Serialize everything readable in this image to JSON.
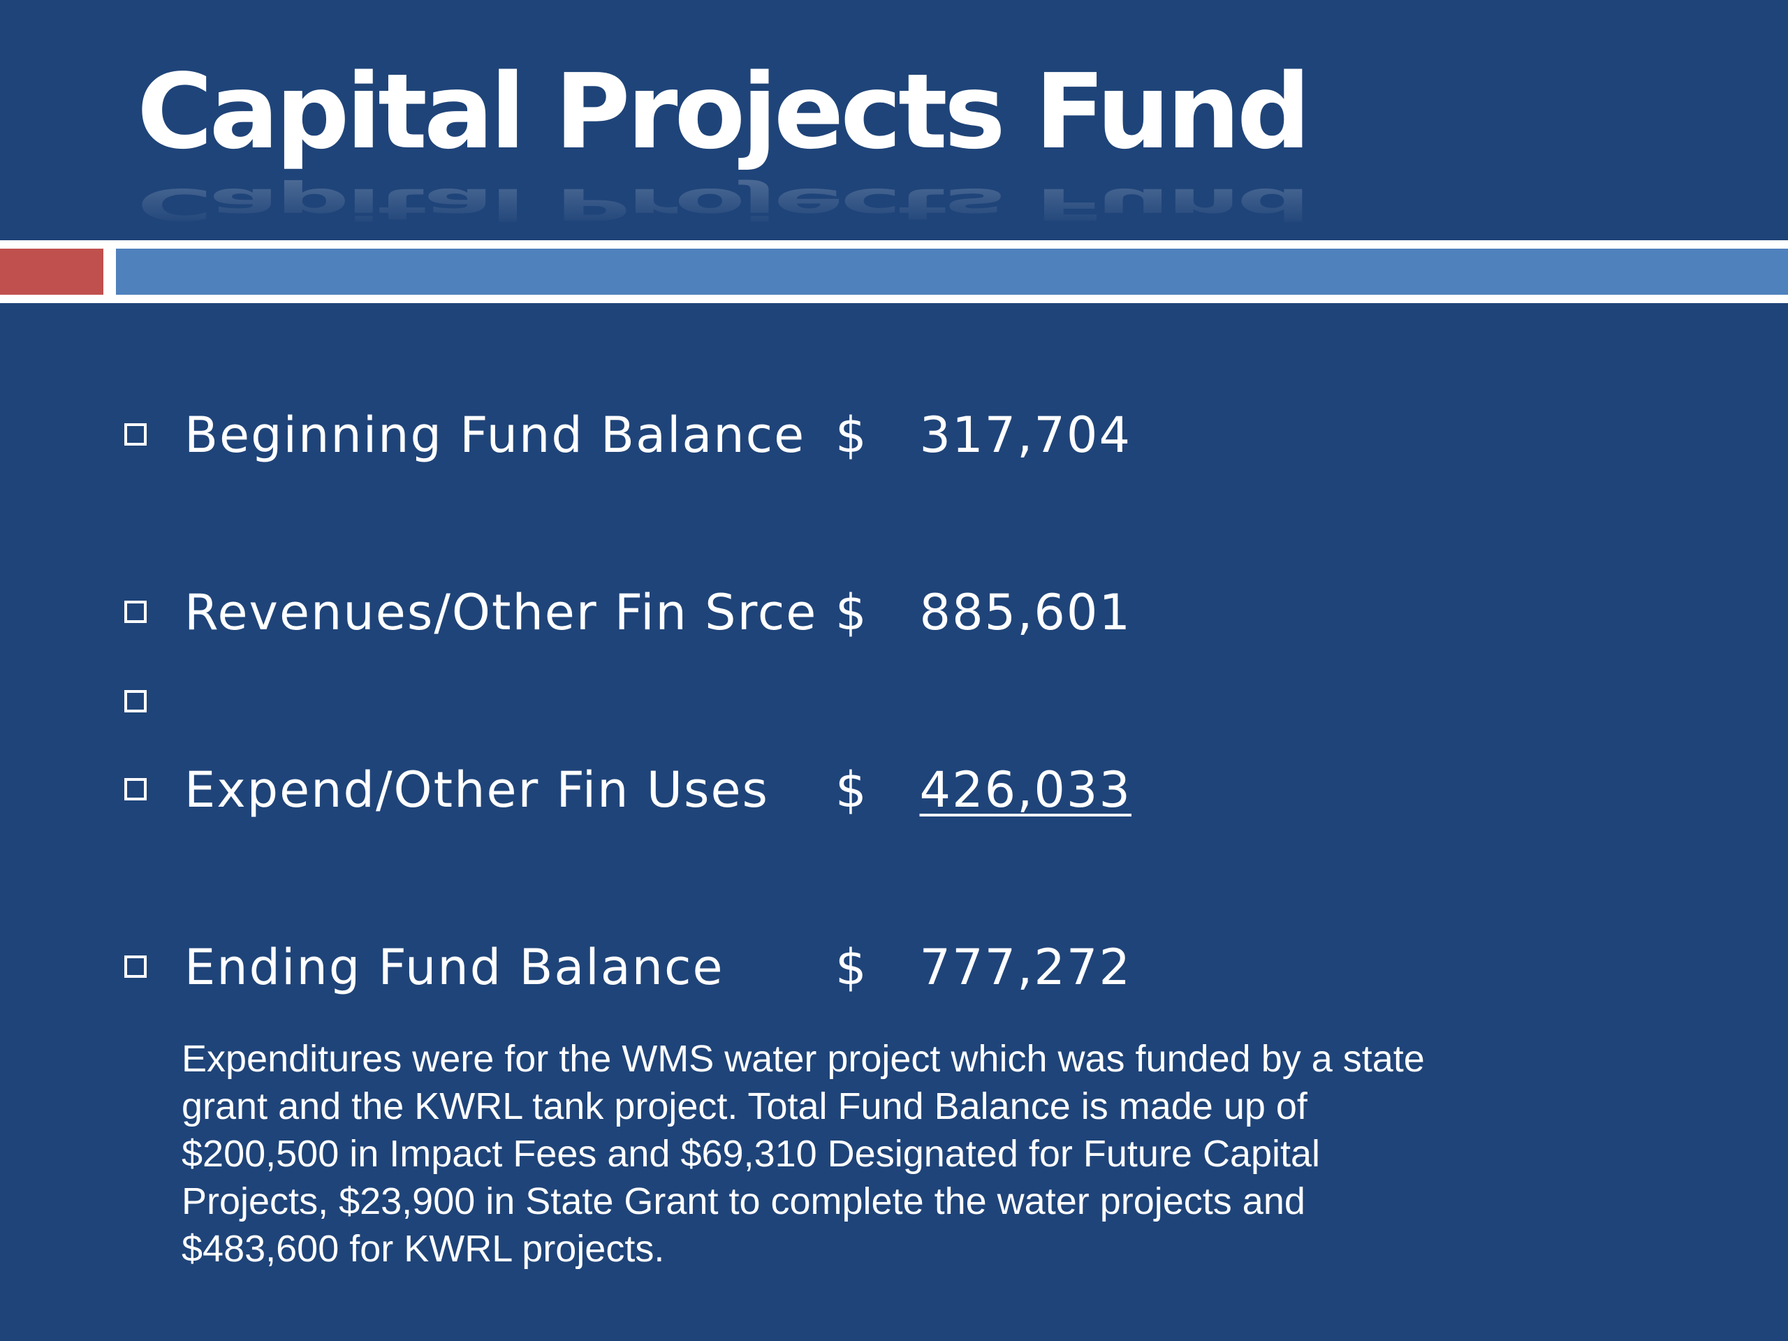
{
  "slide": {
    "title": "Capital Projects Fund",
    "colors": {
      "background": "#1f4479",
      "text": "#ffffff",
      "accent_red": "#c0504d",
      "accent_blue": "#4f81bd"
    },
    "bullet_icon": "hollow-square-bullet",
    "items": [
      {
        "label": "Beginning Fund Balance",
        "currency": "$",
        "amount": "317,704"
      },
      {
        "label": "Revenues/Other Fin Srce",
        "currency": "$",
        "amount": "885,601"
      },
      {
        "label": "",
        "currency": "",
        "amount": ""
      },
      {
        "label": "Expend/Other Fin Uses",
        "currency": "$",
        "amount": "426,033",
        "underlined": true
      },
      {
        "label": "Ending Fund Balance",
        "currency": "$",
        "amount": "777,272"
      }
    ],
    "note": "Expenditures were for the WMS water project which was funded by a state grant and the KWRL tank project. Total Fund Balance is made up of $200,500 in Impact Fees and $69,310 Designated for Future Capital Projects, $23,900 in State Grant to complete the water projects and $483,600 for KWRL projects."
  }
}
